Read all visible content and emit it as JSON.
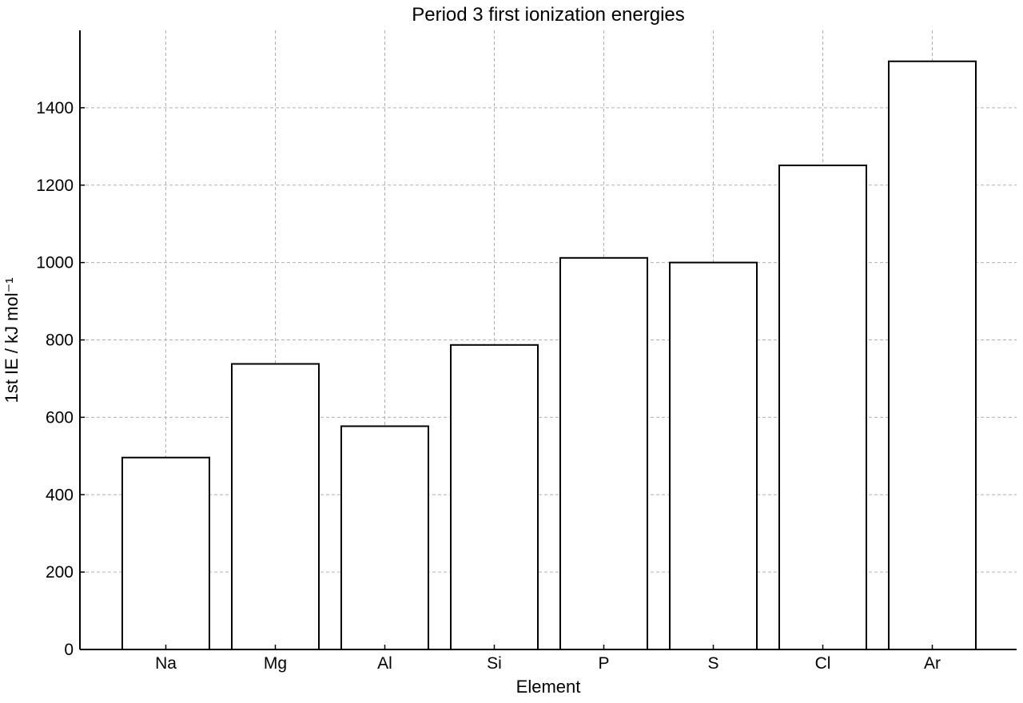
{
  "chart_data": {
    "type": "bar",
    "title": "Period 3 first ionization energies",
    "xlabel": "Element",
    "ylabel": "1st IE / kJ mol⁻¹",
    "categories": [
      "Na",
      "Mg",
      "Al",
      "Si",
      "P",
      "S",
      "Cl",
      "Ar"
    ],
    "values": [
      496,
      738,
      577,
      787,
      1012,
      1000,
      1251,
      1520
    ],
    "ylim": [
      0,
      1600
    ],
    "yticks": [
      "0",
      "200",
      "400",
      "600",
      "800",
      "1000",
      "1200",
      "1400"
    ],
    "grid": true,
    "colors": {
      "bar_fill": "#ffffff",
      "bar_edge": "#000000",
      "grid": "#b0b0b0"
    }
  }
}
